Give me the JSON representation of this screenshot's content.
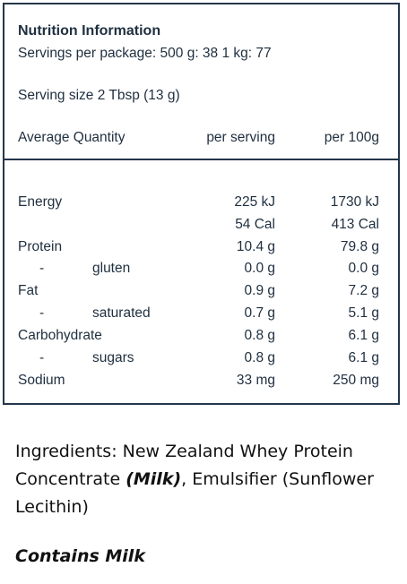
{
  "panel": {
    "title": "Nutrition Information",
    "servings": "Servings per package: 500 g: 38    1 kg: 77",
    "serving_size": "Serving size 2 Tbsp (13 g)",
    "columns": {
      "quantity": "Average Quantity",
      "per_serving": "per serving",
      "per_100g": "per 100g"
    },
    "rows": [
      {
        "label": "Energy",
        "per_serving": "225 kJ",
        "per_100g": "1730 kJ"
      },
      {
        "label": "",
        "per_serving": "54 Cal",
        "per_100g": "413 Cal"
      },
      {
        "label": "Protein",
        "per_serving": "10.4 g",
        "per_100g": "79.8 g"
      },
      {
        "dash": "-",
        "label": "gluten",
        "per_serving": "0.0 g",
        "per_100g": "0.0 g"
      },
      {
        "label": "Fat",
        "per_serving": "0.9 g",
        "per_100g": "7.2 g"
      },
      {
        "dash": "-",
        "label": "saturated",
        "per_serving": "0.7 g",
        "per_100g": "5.1 g"
      },
      {
        "label": "Carbohydrate",
        "per_serving": "0.8 g",
        "per_100g": "6.1 g"
      },
      {
        "dash": "-",
        "label": "sugars",
        "per_serving": "0.8 g",
        "per_100g": "6.1 g"
      },
      {
        "label": "Sodium",
        "per_serving": "33 mg",
        "per_100g": "250 mg"
      }
    ]
  },
  "ingredients": {
    "prefix": "Ingredients: New Zealand Whey Protein Concentrate ",
    "allergen": "(Milk)",
    "suffix": ", Emulsifier (Sunflower Lecithin)"
  },
  "contains": "Contains Milk"
}
